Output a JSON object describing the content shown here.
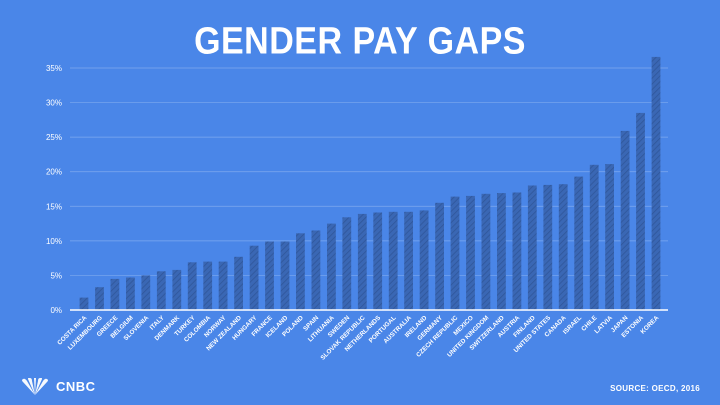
{
  "chart_data": {
    "type": "bar",
    "title": "GENDER PAY GAPS",
    "categories": [
      "COSTA RICA",
      "LUXEMBOURG",
      "GREECE",
      "BELGIUM",
      "SLOVENIA",
      "ITALY",
      "DENMARK",
      "TURKEY",
      "COLOMBIA",
      "NORWAY",
      "NEW ZEALAND",
      "HUNGARY",
      "FRANCE",
      "ICELAND",
      "POLAND",
      "SPAIN",
      "LITHUANIA",
      "SWEDEN",
      "SLOVAK REPUBLIC",
      "NETHERLANDS",
      "PORTUGAL",
      "AUSTRALIA",
      "IRELAND",
      "GERMANY",
      "CZECH REPUBLIC",
      "MEXICO",
      "UNITED KINGDOM",
      "SWITZERLAND",
      "AUSTRIA",
      "FINLAND",
      "UNITED STATES",
      "CANADA",
      "ISRAEL",
      "CHILE",
      "LATVIA",
      "JAPAN",
      "ESTONIA",
      "KOREA"
    ],
    "values": [
      1.8,
      3.3,
      4.5,
      4.7,
      5.0,
      5.6,
      5.8,
      6.9,
      7.0,
      7.0,
      7.7,
      9.3,
      9.9,
      9.9,
      11.1,
      11.5,
      12.5,
      13.4,
      13.9,
      14.1,
      14.2,
      14.2,
      14.4,
      15.5,
      16.4,
      16.5,
      16.8,
      16.9,
      17.0,
      18.0,
      18.1,
      18.2,
      19.3,
      21.0,
      21.1,
      25.9,
      28.5,
      36.6
    ],
    "y_ticks": [
      "0%",
      "5%",
      "10%",
      "15%",
      "20%",
      "25%",
      "30%",
      "35%"
    ],
    "ylim": [
      0,
      35
    ],
    "grid": true,
    "colors": {
      "background": "#4a86e8",
      "bar": "#3a67b4",
      "bar_hatch": "#2f569a",
      "grid": "#7fa9ef",
      "text": "#ffffff"
    }
  },
  "footer": {
    "logo_text": "CNBC",
    "source": "SOURCE: OECD, 2016"
  }
}
